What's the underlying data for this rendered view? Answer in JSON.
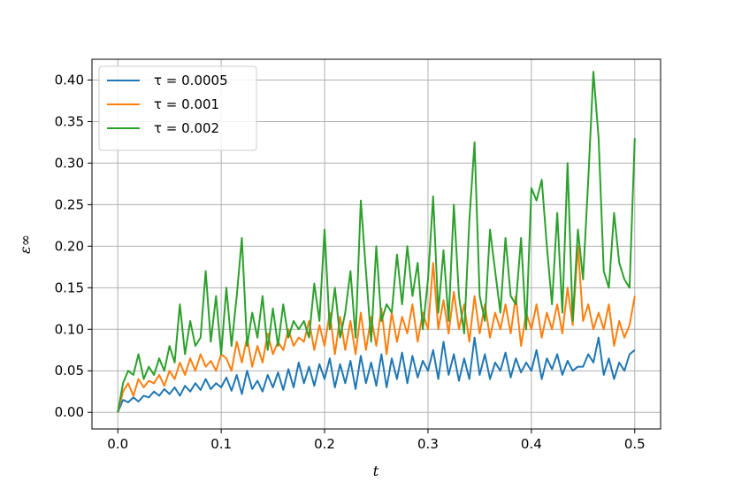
{
  "chart_data": {
    "type": "line",
    "title": "",
    "xlabel": "t",
    "ylabel": "ε∞",
    "xlim": [
      -0.025,
      0.525
    ],
    "ylim": [
      -0.02,
      0.425
    ],
    "x_ticks": [
      0.0,
      0.1,
      0.2,
      0.3,
      0.4,
      0.5
    ],
    "x_tick_labels": [
      "0.0",
      "0.1",
      "0.2",
      "0.3",
      "0.4",
      "0.5"
    ],
    "y_ticks": [
      0.0,
      0.05,
      0.1,
      0.15,
      0.2,
      0.25,
      0.3,
      0.35,
      0.4
    ],
    "y_tick_labels": [
      "0.00",
      "0.05",
      "0.10",
      "0.15",
      "0.20",
      "0.25",
      "0.30",
      "0.35",
      "0.40"
    ],
    "grid": true,
    "legend_position": "top-left",
    "series": [
      {
        "name": "τ = 0.0005",
        "label_text": "τ = 0.0005",
        "color": "#1f77b4",
        "x": [
          0,
          0.005,
          0.01,
          0.015,
          0.02,
          0.025,
          0.03,
          0.035,
          0.04,
          0.045,
          0.05,
          0.055,
          0.06,
          0.065,
          0.07,
          0.075,
          0.08,
          0.085,
          0.09,
          0.095,
          0.1,
          0.105,
          0.11,
          0.115,
          0.12,
          0.125,
          0.13,
          0.135,
          0.14,
          0.145,
          0.15,
          0.155,
          0.16,
          0.165,
          0.17,
          0.175,
          0.18,
          0.185,
          0.19,
          0.195,
          0.2,
          0.205,
          0.21,
          0.215,
          0.22,
          0.225,
          0.23,
          0.235,
          0.24,
          0.245,
          0.25,
          0.255,
          0.26,
          0.265,
          0.27,
          0.275,
          0.28,
          0.285,
          0.29,
          0.295,
          0.3,
          0.305,
          0.31,
          0.315,
          0.32,
          0.325,
          0.33,
          0.335,
          0.34,
          0.345,
          0.35,
          0.355,
          0.36,
          0.365,
          0.37,
          0.375,
          0.38,
          0.385,
          0.39,
          0.395,
          0.4,
          0.405,
          0.41,
          0.415,
          0.42,
          0.425,
          0.43,
          0.435,
          0.44,
          0.445,
          0.45,
          0.455,
          0.46,
          0.465,
          0.47,
          0.475,
          0.48,
          0.485,
          0.49,
          0.495,
          0.5
        ],
        "values": [
          0.0,
          0.015,
          0.012,
          0.018,
          0.013,
          0.02,
          0.018,
          0.025,
          0.02,
          0.028,
          0.022,
          0.03,
          0.02,
          0.032,
          0.025,
          0.035,
          0.027,
          0.04,
          0.028,
          0.035,
          0.03,
          0.042,
          0.026,
          0.045,
          0.022,
          0.05,
          0.028,
          0.038,
          0.025,
          0.045,
          0.03,
          0.048,
          0.027,
          0.052,
          0.03,
          0.06,
          0.035,
          0.055,
          0.032,
          0.058,
          0.04,
          0.065,
          0.03,
          0.058,
          0.035,
          0.062,
          0.028,
          0.068,
          0.035,
          0.06,
          0.032,
          0.07,
          0.03,
          0.065,
          0.04,
          0.072,
          0.035,
          0.068,
          0.042,
          0.062,
          0.05,
          0.075,
          0.04,
          0.085,
          0.045,
          0.07,
          0.038,
          0.065,
          0.04,
          0.09,
          0.045,
          0.07,
          0.04,
          0.06,
          0.05,
          0.072,
          0.042,
          0.065,
          0.048,
          0.06,
          0.05,
          0.075,
          0.04,
          0.065,
          0.052,
          0.07,
          0.045,
          0.062,
          0.05,
          0.055,
          0.055,
          0.07,
          0.06,
          0.09,
          0.045,
          0.065,
          0.04,
          0.06,
          0.05,
          0.07,
          0.075
        ]
      },
      {
        "name": "τ = 0.001",
        "label_text": "τ = 0.001",
        "color": "#ff7f0e",
        "x": [
          0,
          0.005,
          0.01,
          0.015,
          0.02,
          0.025,
          0.03,
          0.035,
          0.04,
          0.045,
          0.05,
          0.055,
          0.06,
          0.065,
          0.07,
          0.075,
          0.08,
          0.085,
          0.09,
          0.095,
          0.1,
          0.105,
          0.11,
          0.115,
          0.12,
          0.125,
          0.13,
          0.135,
          0.14,
          0.145,
          0.15,
          0.155,
          0.16,
          0.165,
          0.17,
          0.175,
          0.18,
          0.185,
          0.19,
          0.195,
          0.2,
          0.205,
          0.21,
          0.215,
          0.22,
          0.225,
          0.23,
          0.235,
          0.24,
          0.245,
          0.25,
          0.255,
          0.26,
          0.265,
          0.27,
          0.275,
          0.28,
          0.285,
          0.29,
          0.295,
          0.3,
          0.305,
          0.31,
          0.315,
          0.32,
          0.325,
          0.33,
          0.335,
          0.34,
          0.345,
          0.35,
          0.355,
          0.36,
          0.365,
          0.37,
          0.375,
          0.38,
          0.385,
          0.39,
          0.395,
          0.4,
          0.405,
          0.41,
          0.415,
          0.42,
          0.425,
          0.43,
          0.435,
          0.44,
          0.445,
          0.45,
          0.455,
          0.46,
          0.465,
          0.47,
          0.475,
          0.48,
          0.485,
          0.49,
          0.495,
          0.5
        ],
        "values": [
          0.0,
          0.025,
          0.035,
          0.02,
          0.04,
          0.03,
          0.038,
          0.035,
          0.045,
          0.032,
          0.05,
          0.04,
          0.06,
          0.045,
          0.065,
          0.05,
          0.07,
          0.055,
          0.062,
          0.05,
          0.07,
          0.065,
          0.05,
          0.085,
          0.06,
          0.09,
          0.055,
          0.08,
          0.06,
          0.095,
          0.07,
          0.085,
          0.075,
          0.1,
          0.08,
          0.09,
          0.085,
          0.11,
          0.075,
          0.105,
          0.08,
          0.12,
          0.07,
          0.115,
          0.075,
          0.11,
          0.07,
          0.12,
          0.075,
          0.115,
          0.08,
          0.125,
          0.07,
          0.12,
          0.085,
          0.115,
          0.095,
          0.13,
          0.085,
          0.12,
          0.1,
          0.18,
          0.1,
          0.135,
          0.095,
          0.145,
          0.1,
          0.13,
          0.085,
          0.14,
          0.095,
          0.13,
          0.09,
          0.12,
          0.1,
          0.13,
          0.095,
          0.14,
          0.08,
          0.12,
          0.1,
          0.13,
          0.09,
          0.12,
          0.1,
          0.13,
          0.095,
          0.15,
          0.105,
          0.2,
          0.11,
          0.13,
          0.1,
          0.12,
          0.1,
          0.13,
          0.08,
          0.11,
          0.09,
          0.105,
          0.14
        ]
      },
      {
        "name": "τ = 0.002",
        "label_text": "τ = 0.002",
        "color": "#2ca02c",
        "x": [
          0,
          0.005,
          0.01,
          0.015,
          0.02,
          0.025,
          0.03,
          0.035,
          0.04,
          0.045,
          0.05,
          0.055,
          0.06,
          0.065,
          0.07,
          0.075,
          0.08,
          0.085,
          0.09,
          0.095,
          0.1,
          0.105,
          0.11,
          0.115,
          0.12,
          0.125,
          0.13,
          0.135,
          0.14,
          0.145,
          0.15,
          0.155,
          0.16,
          0.165,
          0.17,
          0.175,
          0.18,
          0.185,
          0.19,
          0.195,
          0.2,
          0.205,
          0.21,
          0.215,
          0.22,
          0.225,
          0.23,
          0.235,
          0.24,
          0.245,
          0.25,
          0.255,
          0.26,
          0.265,
          0.27,
          0.275,
          0.28,
          0.285,
          0.29,
          0.295,
          0.3,
          0.305,
          0.31,
          0.315,
          0.32,
          0.325,
          0.33,
          0.335,
          0.34,
          0.345,
          0.35,
          0.355,
          0.36,
          0.365,
          0.37,
          0.375,
          0.38,
          0.385,
          0.39,
          0.395,
          0.4,
          0.405,
          0.41,
          0.415,
          0.42,
          0.425,
          0.43,
          0.435,
          0.44,
          0.445,
          0.45,
          0.455,
          0.46,
          0.465,
          0.47,
          0.475,
          0.48,
          0.485,
          0.49,
          0.495,
          0.5
        ],
        "values": [
          0.0,
          0.035,
          0.05,
          0.045,
          0.07,
          0.04,
          0.055,
          0.045,
          0.065,
          0.05,
          0.08,
          0.06,
          0.13,
          0.07,
          0.11,
          0.08,
          0.09,
          0.17,
          0.085,
          0.14,
          0.07,
          0.15,
          0.08,
          0.14,
          0.21,
          0.08,
          0.12,
          0.09,
          0.14,
          0.075,
          0.125,
          0.08,
          0.13,
          0.09,
          0.11,
          0.1,
          0.11,
          0.09,
          0.155,
          0.11,
          0.22,
          0.1,
          0.15,
          0.09,
          0.12,
          0.17,
          0.09,
          0.255,
          0.17,
          0.085,
          0.2,
          0.11,
          0.13,
          0.12,
          0.19,
          0.13,
          0.2,
          0.14,
          0.18,
          0.1,
          0.16,
          0.26,
          0.12,
          0.195,
          0.11,
          0.25,
          0.14,
          0.095,
          0.23,
          0.325,
          0.14,
          0.11,
          0.22,
          0.17,
          0.12,
          0.21,
          0.14,
          0.13,
          0.21,
          0.1,
          0.27,
          0.255,
          0.28,
          0.2,
          0.13,
          0.24,
          0.12,
          0.3,
          0.11,
          0.22,
          0.16,
          0.28,
          0.41,
          0.33,
          0.17,
          0.15,
          0.24,
          0.18,
          0.16,
          0.15,
          0.33
        ]
      }
    ]
  }
}
